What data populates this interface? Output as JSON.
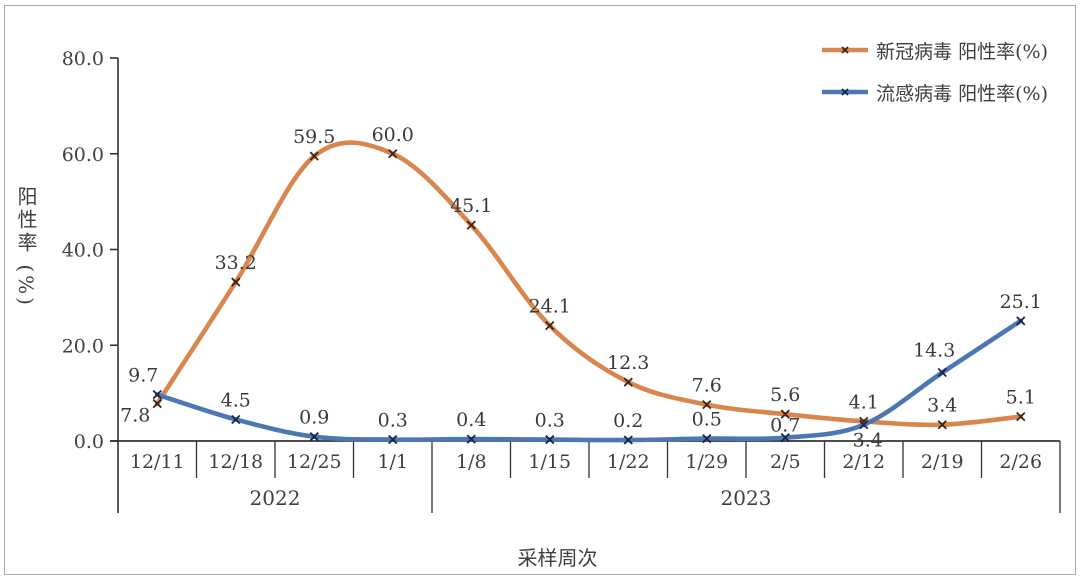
{
  "chart_data": {
    "type": "line",
    "smooth": true,
    "grid": false,
    "legend_position": "top-right",
    "xlabel": "采样周次",
    "ylabel": "阳性率 (%)",
    "ylim": [
      0,
      80
    ],
    "ytick_labels": [
      "0.0",
      "20.0",
      "40.0",
      "60.0",
      "80.0"
    ],
    "ytick_values": [
      0,
      20,
      40,
      60,
      80
    ],
    "categories": [
      "12/11",
      "12/18",
      "12/25",
      "1/1",
      "1/8",
      "1/15",
      "1/22",
      "1/29",
      "2/5",
      "2/12",
      "2/19",
      "2/26"
    ],
    "year_groups": [
      {
        "label": "2022",
        "span": [
          0,
          3
        ]
      },
      {
        "label": "2023",
        "span": [
          4,
          11
        ]
      }
    ],
    "series": [
      {
        "name": "新冠病毒 阳性率(%)",
        "color": "#D8854E",
        "marker_color": "#3a2512",
        "marker": "x",
        "values": [
          7.8,
          33.2,
          59.5,
          60.0,
          45.1,
          24.1,
          12.3,
          7.6,
          5.6,
          4.1,
          3.4,
          5.1
        ],
        "label_offsets": {
          "0": [
            -22,
            18
          ]
        }
      },
      {
        "name": "流感病毒 阳性率(%)",
        "color": "#4C77B3",
        "marker_color": "#182544",
        "marker": "x",
        "values": [
          9.7,
          4.5,
          0.9,
          0.3,
          0.4,
          0.3,
          0.2,
          0.5,
          0.7,
          3.4,
          14.3,
          25.1
        ],
        "label_offsets": {
          "0": [
            -14,
            -13
          ],
          "8": [
            0,
            -6
          ],
          "9": [
            4,
            22
          ],
          "10": [
            -8,
            -16
          ]
        }
      }
    ],
    "axis_color": "#333333",
    "text_color": "#3f3f3f"
  }
}
